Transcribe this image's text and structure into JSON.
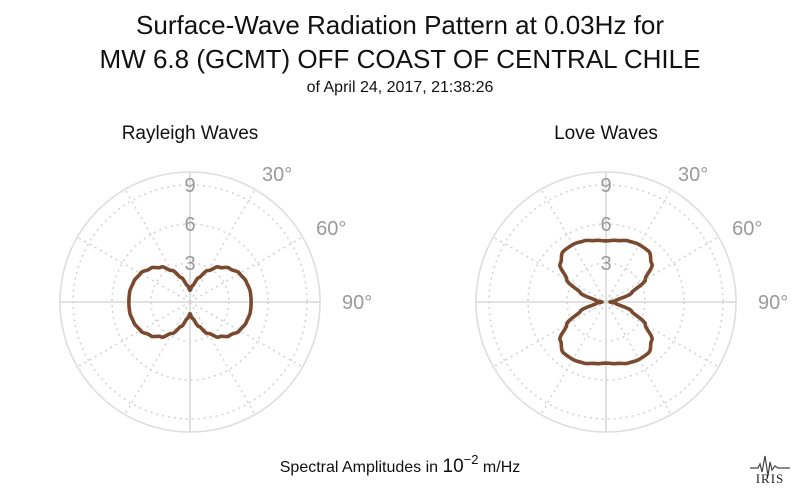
{
  "figure": {
    "title_line1": "Surface-Wave Radiation Pattern at 0.03Hz for",
    "title_line2": "MW 6.8 (GCMT) OFF COAST OF CENTRAL CHILE",
    "subtitle": "of April 24, 2017, 21:38:26",
    "footer_prefix": "Spectral Amplitudes in ",
    "footer_power_base": "10",
    "footer_power_exp": "−2",
    "footer_suffix": " m/Hz",
    "logo_text": "IRIS",
    "curve_color": "#7a4a30"
  },
  "chart_data": [
    {
      "type": "polar-line",
      "subplot_title": "Rayleigh Waves",
      "radial_ticks": [
        "3",
        "6",
        "9"
      ],
      "radial_range": [
        0,
        10
      ],
      "angular_tick_labels": [
        "30°",
        "60°",
        "90°"
      ],
      "angle_unit": "degrees clockwise from north",
      "series": [
        {
          "theta": [
            0,
            10,
            20,
            30,
            40,
            50,
            60,
            70,
            80,
            90,
            100,
            110,
            120,
            130,
            140,
            150,
            160,
            170,
            180,
            190,
            200,
            210,
            220,
            230,
            240,
            250,
            260,
            270,
            280,
            290,
            300,
            310,
            320,
            330,
            340,
            350
          ],
          "r": [
            0.9,
            1.3,
            2.0,
            2.8,
            3.5,
            4.0,
            4.4,
            4.6,
            4.7,
            4.7,
            4.7,
            4.6,
            4.4,
            4.0,
            3.5,
            2.8,
            2.0,
            1.3,
            0.9,
            1.3,
            2.0,
            2.8,
            3.5,
            4.0,
            4.4,
            4.6,
            4.7,
            4.7,
            4.7,
            4.6,
            4.4,
            4.0,
            3.5,
            2.8,
            2.0,
            1.3
          ]
        }
      ]
    },
    {
      "type": "polar-line",
      "subplot_title": "Love Waves",
      "radial_ticks": [
        "3",
        "6",
        "9"
      ],
      "radial_range": [
        0,
        10
      ],
      "angular_tick_labels": [
        "30°",
        "60°",
        "90°"
      ],
      "angle_unit": "degrees clockwise from north",
      "series": [
        {
          "theta": [
            0,
            10,
            20,
            30,
            40,
            50,
            60,
            70,
            80,
            90,
            100,
            110,
            120,
            130,
            140,
            150,
            160,
            170,
            180,
            190,
            200,
            210,
            220,
            230,
            240,
            250,
            260,
            270,
            280,
            290,
            300,
            310,
            320,
            330,
            340,
            350
          ],
          "r": [
            4.7,
            4.8,
            5.0,
            5.1,
            5.1,
            4.6,
            3.5,
            2.1,
            0.8,
            0.3,
            0.8,
            2.1,
            3.5,
            4.6,
            5.1,
            5.1,
            5.0,
            4.8,
            4.7,
            4.8,
            5.0,
            5.1,
            5.1,
            4.6,
            3.5,
            2.1,
            0.8,
            0.3,
            0.8,
            2.1,
            3.5,
            4.6,
            5.1,
            5.1,
            5.0,
            4.8
          ]
        }
      ]
    }
  ]
}
